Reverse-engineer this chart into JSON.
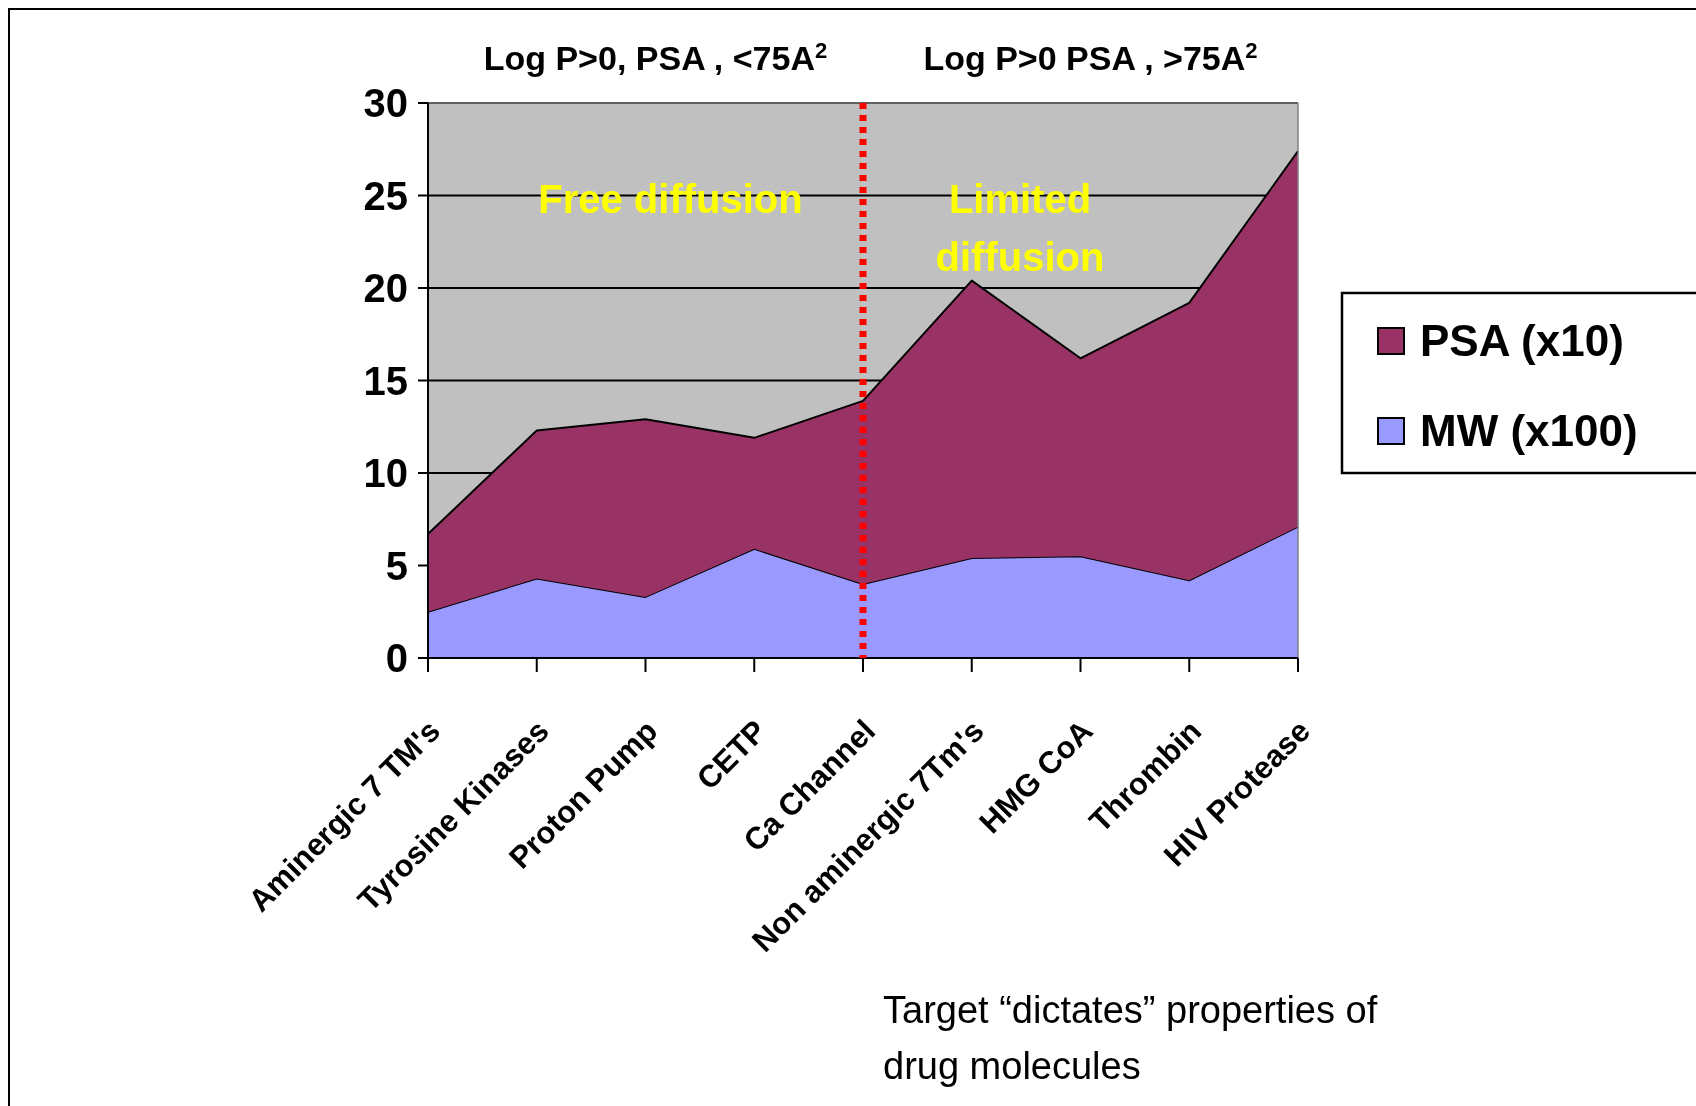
{
  "chart_data": {
    "type": "area",
    "stacked": true,
    "categories": [
      "Aminergic 7 TM's",
      "Tyrosine Kinases",
      "Proton Pump",
      "CETP",
      "Ca Channel",
      "Non aminergic 7Tm's",
      "HMG CoA",
      "Thrombin",
      "HIV Protease"
    ],
    "series": [
      {
        "name": "MW (x100)",
        "color": "#9999ff",
        "values": [
          2.5,
          4.3,
          3.3,
          5.9,
          4.0,
          5.4,
          5.5,
          4.2,
          7.1
        ]
      },
      {
        "name": "PSA (x10)",
        "color": "#993366",
        "values": [
          4.2,
          8.0,
          9.6,
          6.0,
          9.9,
          15.0,
          10.7,
          15.0,
          20.3
        ]
      }
    ],
    "ylim": [
      0,
      30
    ],
    "yticks": [
      0,
      5,
      10,
      15,
      20,
      25,
      30
    ],
    "grid": "y",
    "legend": "right",
    "ref_lines": [
      {
        "axis": "x",
        "value": "Ca Channel",
        "color": "#ff0000",
        "line_style": "dotted"
      }
    ],
    "annotations": [
      "Log P>0, PSA , <75A$^{2}$",
      "Log P>0 PSA , >75A$^{2}$",
      "Free diffusion",
      "Limited diffusion",
      "Target “dictates” properties of drug molecules"
    ]
  }
}
